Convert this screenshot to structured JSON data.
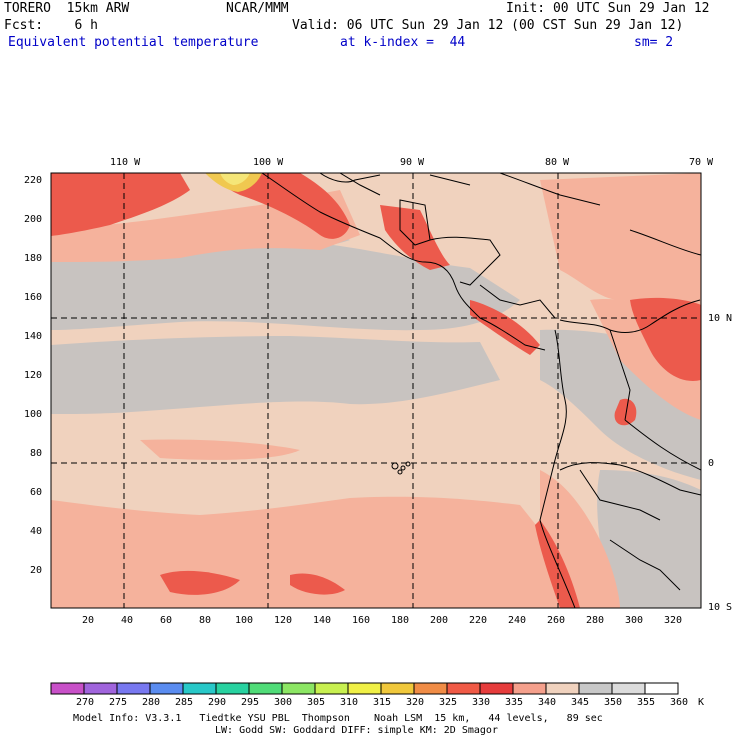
{
  "header": {
    "model": "TORERO  15km ARW",
    "center": "NCAR/MMM",
    "init": "Init: 00 UTC Sun 29 Jan 12",
    "fcst": "Fcst:    6 h",
    "valid": "Valid: 06 UTC Sun 29 Jan 12 (00 CST Sun 29 Jan 12)",
    "field": "Equivalent potential temperature",
    "level": "at k-index =  44",
    "smooth": "sm= 2"
  },
  "top_axis": [
    "110 W",
    "100 W",
    "90 W",
    "80 W",
    "70 W"
  ],
  "left_axis": [
    "220",
    "200",
    "180",
    "160",
    "140",
    "120",
    "100",
    "80",
    "60",
    "40",
    "20"
  ],
  "bottom_axis": [
    "20",
    "40",
    "60",
    "80",
    "100",
    "120",
    "140",
    "160",
    "180",
    "200",
    "220",
    "240",
    "260",
    "280",
    "300",
    "320"
  ],
  "right_axis": [
    "10 N",
    "0",
    "10 S"
  ],
  "colorbar": {
    "labels": [
      "270",
      "275",
      "280",
      "285",
      "290",
      "295",
      "300",
      "305",
      "310",
      "315",
      "320",
      "325",
      "330",
      "335",
      "340",
      "345",
      "350",
      "355",
      "360"
    ],
    "unit": "K",
    "colors": [
      "#c850c8",
      "#a064dc",
      "#7878f0",
      "#5a8cf0",
      "#28c8c8",
      "#28d2a0",
      "#50dc78",
      "#8ce664",
      "#c8f050",
      "#f0f046",
      "#f0c83c",
      "#f08c46",
      "#f05a46",
      "#e63c3c",
      "#f5a08c",
      "#f0d2be",
      "#c8c8c8",
      "#dcdcdc",
      "#ffffff"
    ]
  },
  "footer": {
    "line1": "Model Info: V3.3.1   Tiedtke YSU PBL  Thompson    Noah LSM  15 km,   44 levels,   89 sec",
    "line2": "LW: Godd SW: Goddard DIFF: simple KM: 2D Smagor"
  }
}
